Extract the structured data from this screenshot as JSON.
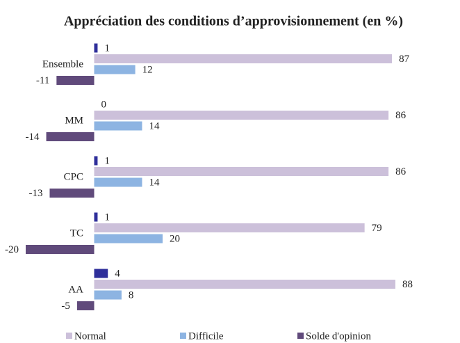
{
  "chart_data": {
    "type": "hbar",
    "title": "Appréciation des conditions d’approvisionnement (en %)",
    "categories": [
      "Ensemble",
      "MM",
      "CPC",
      "TC",
      "AA"
    ],
    "series": [
      {
        "color": "#2e2e9a",
        "values": [
          1,
          0,
          1,
          1,
          4
        ]
      },
      {
        "name": "Normal",
        "color": "#ccc0da",
        "values": [
          87,
          86,
          86,
          79,
          88
        ]
      },
      {
        "name": "Difficile",
        "color": "#8db4e2",
        "values": [
          12,
          14,
          14,
          20,
          8
        ]
      },
      {
        "name": "Solde d'opinion",
        "color": "#604a7b",
        "values": [
          -11,
          -14,
          -13,
          -20,
          -5
        ]
      }
    ],
    "xlim": [
      -20,
      88
    ]
  }
}
